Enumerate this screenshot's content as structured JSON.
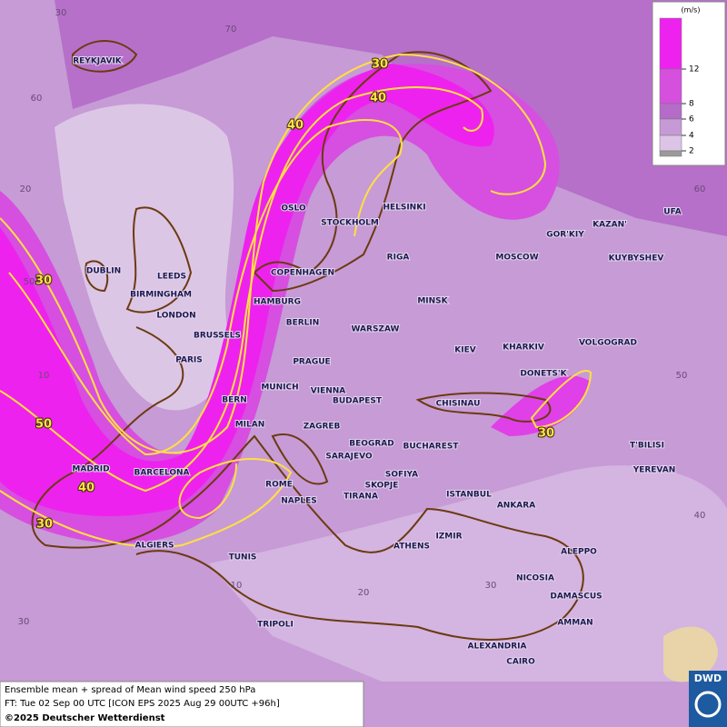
{
  "map": {
    "grid_labels": [
      30,
      70,
      60,
      20,
      50,
      10,
      60,
      50,
      40,
      10,
      20,
      30,
      30
    ],
    "contour_labels": [
      30,
      40,
      40,
      30,
      50,
      40,
      30,
      30
    ],
    "cities": [
      "REYKJAVIK",
      "OSLO",
      "STOCKHOLM",
      "HELSINKI",
      "GOR'KIY",
      "KAZAN'",
      "UFA",
      "DUBLIN",
      "LEEDS",
      "RIGA",
      "MOSCOW",
      "KUYBYSHEV",
      "COPENHAGEN",
      "BIRMINGHAM",
      "HAMBURG",
      "MINSK",
      "LONDON",
      "BERLIN",
      "WARSZAW",
      "BRUSSELS",
      "KIEV",
      "KHARKIV",
      "VOLGOGRAD",
      "PARIS",
      "PRAGUE",
      "DONETS'K",
      "MUNICH",
      "VIENNA",
      "BERN",
      "BUDAPEST",
      "CHISINAU",
      "MILAN",
      "ZAGREB",
      "BEOGRAD",
      "BUCHAREST",
      "T'BILISI",
      "SARAJEVO",
      "MADRID",
      "BARCELONA",
      "YEREVAN",
      "SOFIYA",
      "ROME",
      "SKOPJE",
      "TIRANA",
      "ISTANBUL",
      "NAPLES",
      "ANKARA",
      "IZMIR",
      "ALGIERS",
      "ATHENS",
      "ALEPPO",
      "TUNIS",
      "NICOSIA",
      "DAMASCUS",
      "AMMAN",
      "TRIPOLI",
      "ALEXANDRIA",
      "CAIRO"
    ]
  },
  "legend": {
    "unit": "(m/s)",
    "levels": [
      12,
      8,
      6,
      4,
      2
    ],
    "colors": [
      "#ee22ee",
      "#d650de",
      "#b46cc8",
      "#c69ad6",
      "#dcc4e6",
      "#9a9a9a"
    ]
  },
  "footer": {
    "line1": "Ensemble mean + spread of Mean wind speed 250 hPa",
    "line2": "FT: Tue 02 Sep 00 UTC [ICON EPS 2025 Aug 29 00UTC +96h]",
    "line3": "©2025 Deutscher Wetterdienst"
  },
  "logo": "DWD"
}
